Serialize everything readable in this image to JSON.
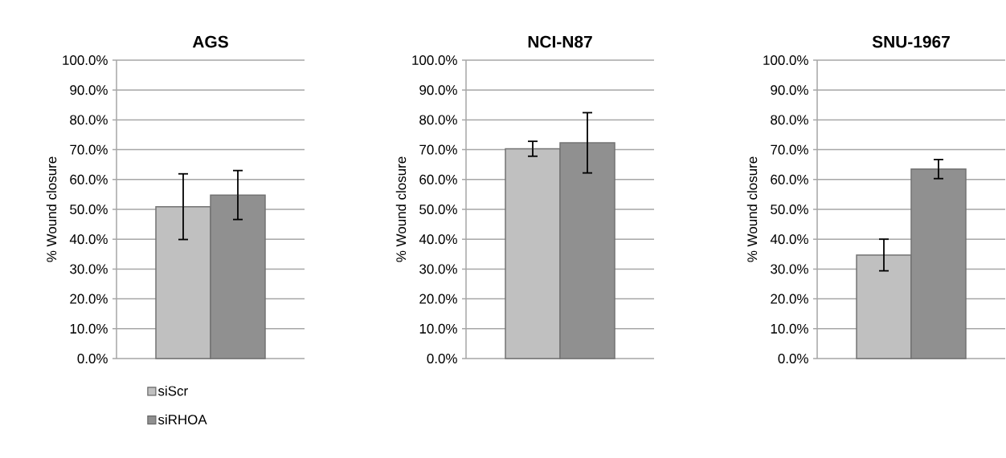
{
  "chart_data": [
    {
      "type": "bar",
      "title": "AGS",
      "ylabel": "% Wound closure",
      "categories": [
        null
      ],
      "grid": "y",
      "legend": "bottom left",
      "ylim": [
        0,
        100
      ],
      "yticks": [
        {
          "value": 0,
          "label": "0.0%"
        },
        {
          "value": 10,
          "label": "10.0%"
        },
        {
          "value": 20,
          "label": "20.0%"
        },
        {
          "value": 30,
          "label": "30.0%"
        },
        {
          "value": 40,
          "label": "40.0%"
        },
        {
          "value": 50,
          "label": "50.0%"
        },
        {
          "value": 60,
          "label": "60.0%"
        },
        {
          "value": 70,
          "label": "70.0%"
        },
        {
          "value": 80,
          "label": "80.0%"
        },
        {
          "value": 90,
          "label": "90.0%"
        },
        {
          "value": 100,
          "label": "100.0%"
        }
      ],
      "series": [
        {
          "name": "siScr",
          "color": "#c0c0c0",
          "values": [
            50.9
          ],
          "errors": [
            11
          ]
        },
        {
          "name": "siRHOA",
          "color": "#909090",
          "values": [
            54.8
          ],
          "errors": [
            8.2
          ]
        }
      ]
    },
    {
      "type": "bar",
      "title": "NCI-N87",
      "ylabel": "% Wound closure",
      "categories": [
        null
      ],
      "grid": "y",
      "ylim": [
        0,
        100
      ],
      "yticks": [
        {
          "value": 0,
          "label": "0.0%"
        },
        {
          "value": 10,
          "label": "10.0%"
        },
        {
          "value": 20,
          "label": "20.0%"
        },
        {
          "value": 30,
          "label": "30.0%"
        },
        {
          "value": 40,
          "label": "40.0%"
        },
        {
          "value": 50,
          "label": "50.0%"
        },
        {
          "value": 60,
          "label": "60.0%"
        },
        {
          "value": 70,
          "label": "70.0%"
        },
        {
          "value": 80,
          "label": "80.0%"
        },
        {
          "value": 90,
          "label": "90.0%"
        },
        {
          "value": 100,
          "label": "100.0%"
        }
      ],
      "series": [
        {
          "color": "#c0c0c0",
          "values": [
            70.3
          ],
          "errors": [
            2.5
          ]
        },
        {
          "color": "#909090",
          "values": [
            72.3
          ],
          "errors": [
            10.1
          ]
        }
      ]
    },
    {
      "type": "bar",
      "title": "SNU-1967",
      "ylabel": "% Wound closure",
      "categories": [
        null
      ],
      "grid": "y",
      "ylim": [
        0,
        100
      ],
      "yticks": [
        {
          "value": 0,
          "label": "0.0%"
        },
        {
          "value": 10,
          "label": "10.0%"
        },
        {
          "value": 20,
          "label": "20.0%"
        },
        {
          "value": 30,
          "label": "30.0%"
        },
        {
          "value": 40,
          "label": "40.0%"
        },
        {
          "value": 50,
          "label": "50.0%"
        },
        {
          "value": 60,
          "label": "60.0%"
        },
        {
          "value": 70,
          "label": "70.0%"
        },
        {
          "value": 80,
          "label": "80.0%"
        },
        {
          "value": 90,
          "label": "90.0%"
        },
        {
          "value": 100,
          "label": "100.0%"
        }
      ],
      "series": [
        {
          "color": "#c0c0c0",
          "values": [
            34.7
          ],
          "errors": [
            5.3
          ]
        },
        {
          "color": "#909090",
          "values": [
            63.5
          ],
          "errors": [
            3.2
          ]
        }
      ]
    }
  ]
}
